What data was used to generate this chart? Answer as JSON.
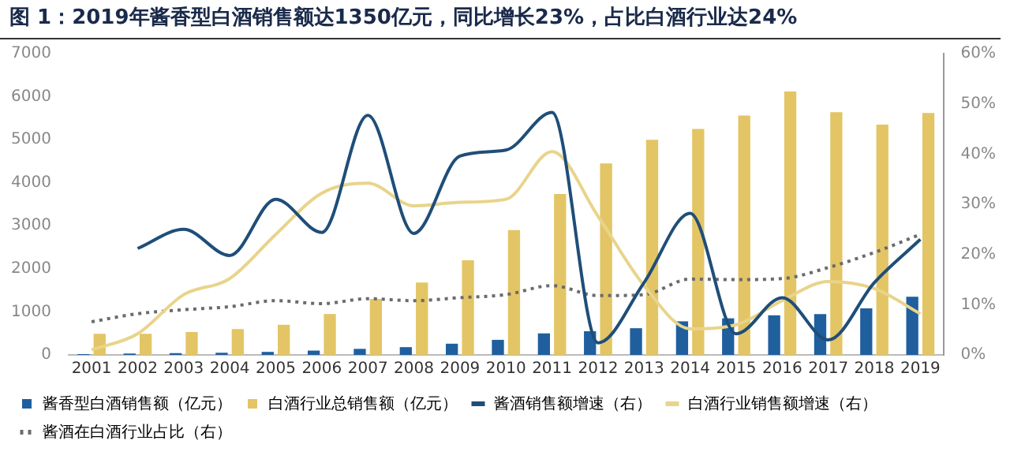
{
  "chart_data": {
    "type": "bar",
    "title": "图 1：2019年酱香型白酒销售额达1350亿元，同比增长23%，占比白酒行业达24%",
    "categories": [
      "2001",
      "2002",
      "2003",
      "2004",
      "2005",
      "2006",
      "2007",
      "2008",
      "2009",
      "2010",
      "2011",
      "2012",
      "2013",
      "2014",
      "2015",
      "2016",
      "2017",
      "2018",
      "2019"
    ],
    "series": [
      {
        "name": "酱香型白酒销售额（亿元）",
        "color": "#1f5f9e",
        "values": [
          20,
          30,
          40,
          50,
          70,
          100,
          140,
          180,
          260,
          350,
          500,
          550,
          620,
          780,
          850,
          920,
          950,
          1080,
          1350
        ]
      },
      {
        "name": "白酒行业总销售额（亿元）",
        "color": "#e3c565",
        "values": [
          490,
          490,
          530,
          600,
          700,
          950,
          1300,
          1680,
          2200,
          2900,
          3740,
          4450,
          5000,
          5250,
          5560,
          6120,
          5640,
          5350,
          5620
        ]
      },
      {
        "name": "酱酒销售额增速（右）",
        "type": "line",
        "axis": "y2",
        "color": "#1f4e79",
        "line_style": "solid",
        "values": [
          null,
          21.2,
          25,
          19.8,
          31,
          24.4,
          47.7,
          24.2,
          39.6,
          40.8,
          48.3,
          2.4,
          14.4,
          28.2,
          4.2,
          11.4,
          3,
          14.4,
          23
        ]
      },
      {
        "name": "白酒行业销售额增速（右）",
        "type": "line",
        "axis": "y2",
        "color": "#e8d48a",
        "line_style": "solid",
        "values": [
          1,
          4.2,
          12,
          15.2,
          24,
          32.2,
          34.2,
          29.7,
          30.4,
          31,
          40.5,
          27.6,
          13.8,
          5.2,
          6,
          10.8,
          14.6,
          13.2,
          8.2
        ]
      },
      {
        "name": "酱酒在白酒行业占比（右）",
        "type": "line",
        "axis": "y2",
        "color": "#6b6b6b",
        "line_style": "dotted",
        "values": [
          6.6,
          8.2,
          9,
          9.6,
          10.8,
          10.2,
          11.2,
          10.8,
          11.4,
          12,
          13.8,
          11.8,
          12,
          15.1,
          15,
          15.2,
          17.4,
          20.4,
          24
        ]
      }
    ],
    "ylim": [
      0,
      7000
    ],
    "yticks": [
      0,
      1000,
      2000,
      3000,
      4000,
      5000,
      6000,
      7000
    ],
    "y2lim": [
      0,
      60
    ],
    "y2ticks": [
      {
        "value": 0,
        "label": "0%"
      },
      {
        "value": 10,
        "label": "10%"
      },
      {
        "value": 20,
        "label": "20%"
      },
      {
        "value": 30,
        "label": "30%"
      },
      {
        "value": 40,
        "label": "40%"
      },
      {
        "value": 50,
        "label": "50%"
      },
      {
        "value": 60,
        "label": "60%"
      }
    ],
    "grid": false,
    "legend": "bottom",
    "marker": "none"
  }
}
